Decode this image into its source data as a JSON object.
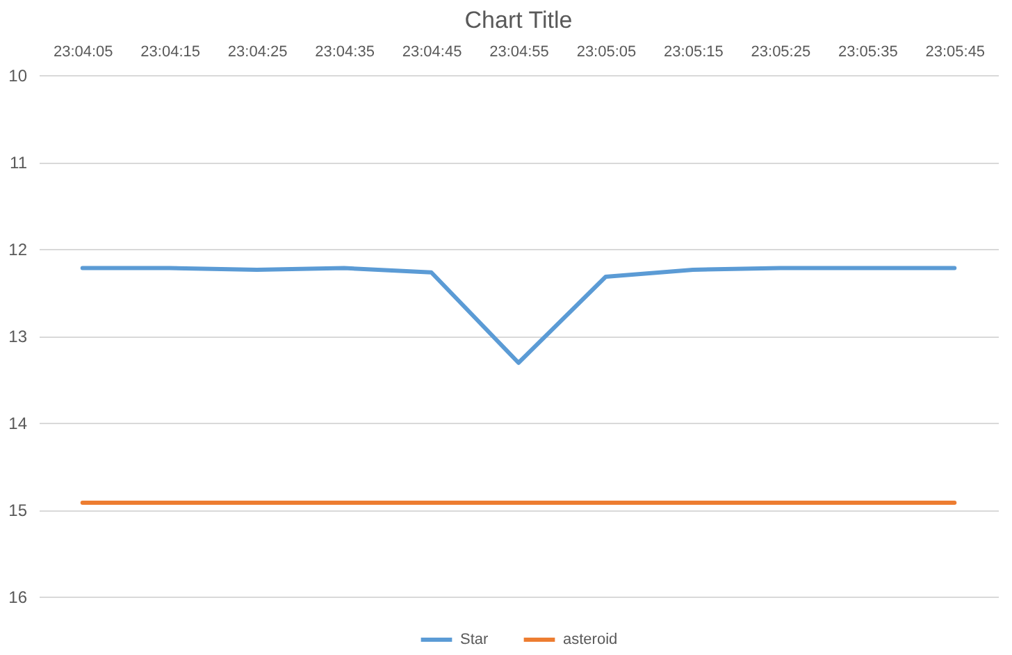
{
  "chart_data": {
    "type": "line",
    "title": "Chart Title",
    "categories": [
      "23:04:05",
      "23:04:15",
      "23:04:25",
      "23:04:35",
      "23:04:45",
      "23:04:55",
      "23:05:05",
      "23:05:15",
      "23:05:25",
      "23:05:35",
      "23:05:45"
    ],
    "series": [
      {
        "name": "Star",
        "color": "#5b9bd5",
        "values": [
          12.22,
          12.22,
          12.24,
          12.22,
          12.27,
          13.31,
          12.32,
          12.24,
          12.22,
          12.22,
          12.22
        ]
      },
      {
        "name": "asteroid",
        "color": "#ed7d31",
        "values": [
          14.92,
          14.92,
          14.92,
          14.92,
          14.92,
          14.92,
          14.92,
          14.92,
          14.92,
          14.92,
          14.92
        ]
      }
    ],
    "ylim": [
      16,
      10
    ],
    "yticks": [
      10,
      11,
      12,
      13,
      14,
      15,
      16
    ],
    "grid": "y",
    "legend": "bottom"
  }
}
